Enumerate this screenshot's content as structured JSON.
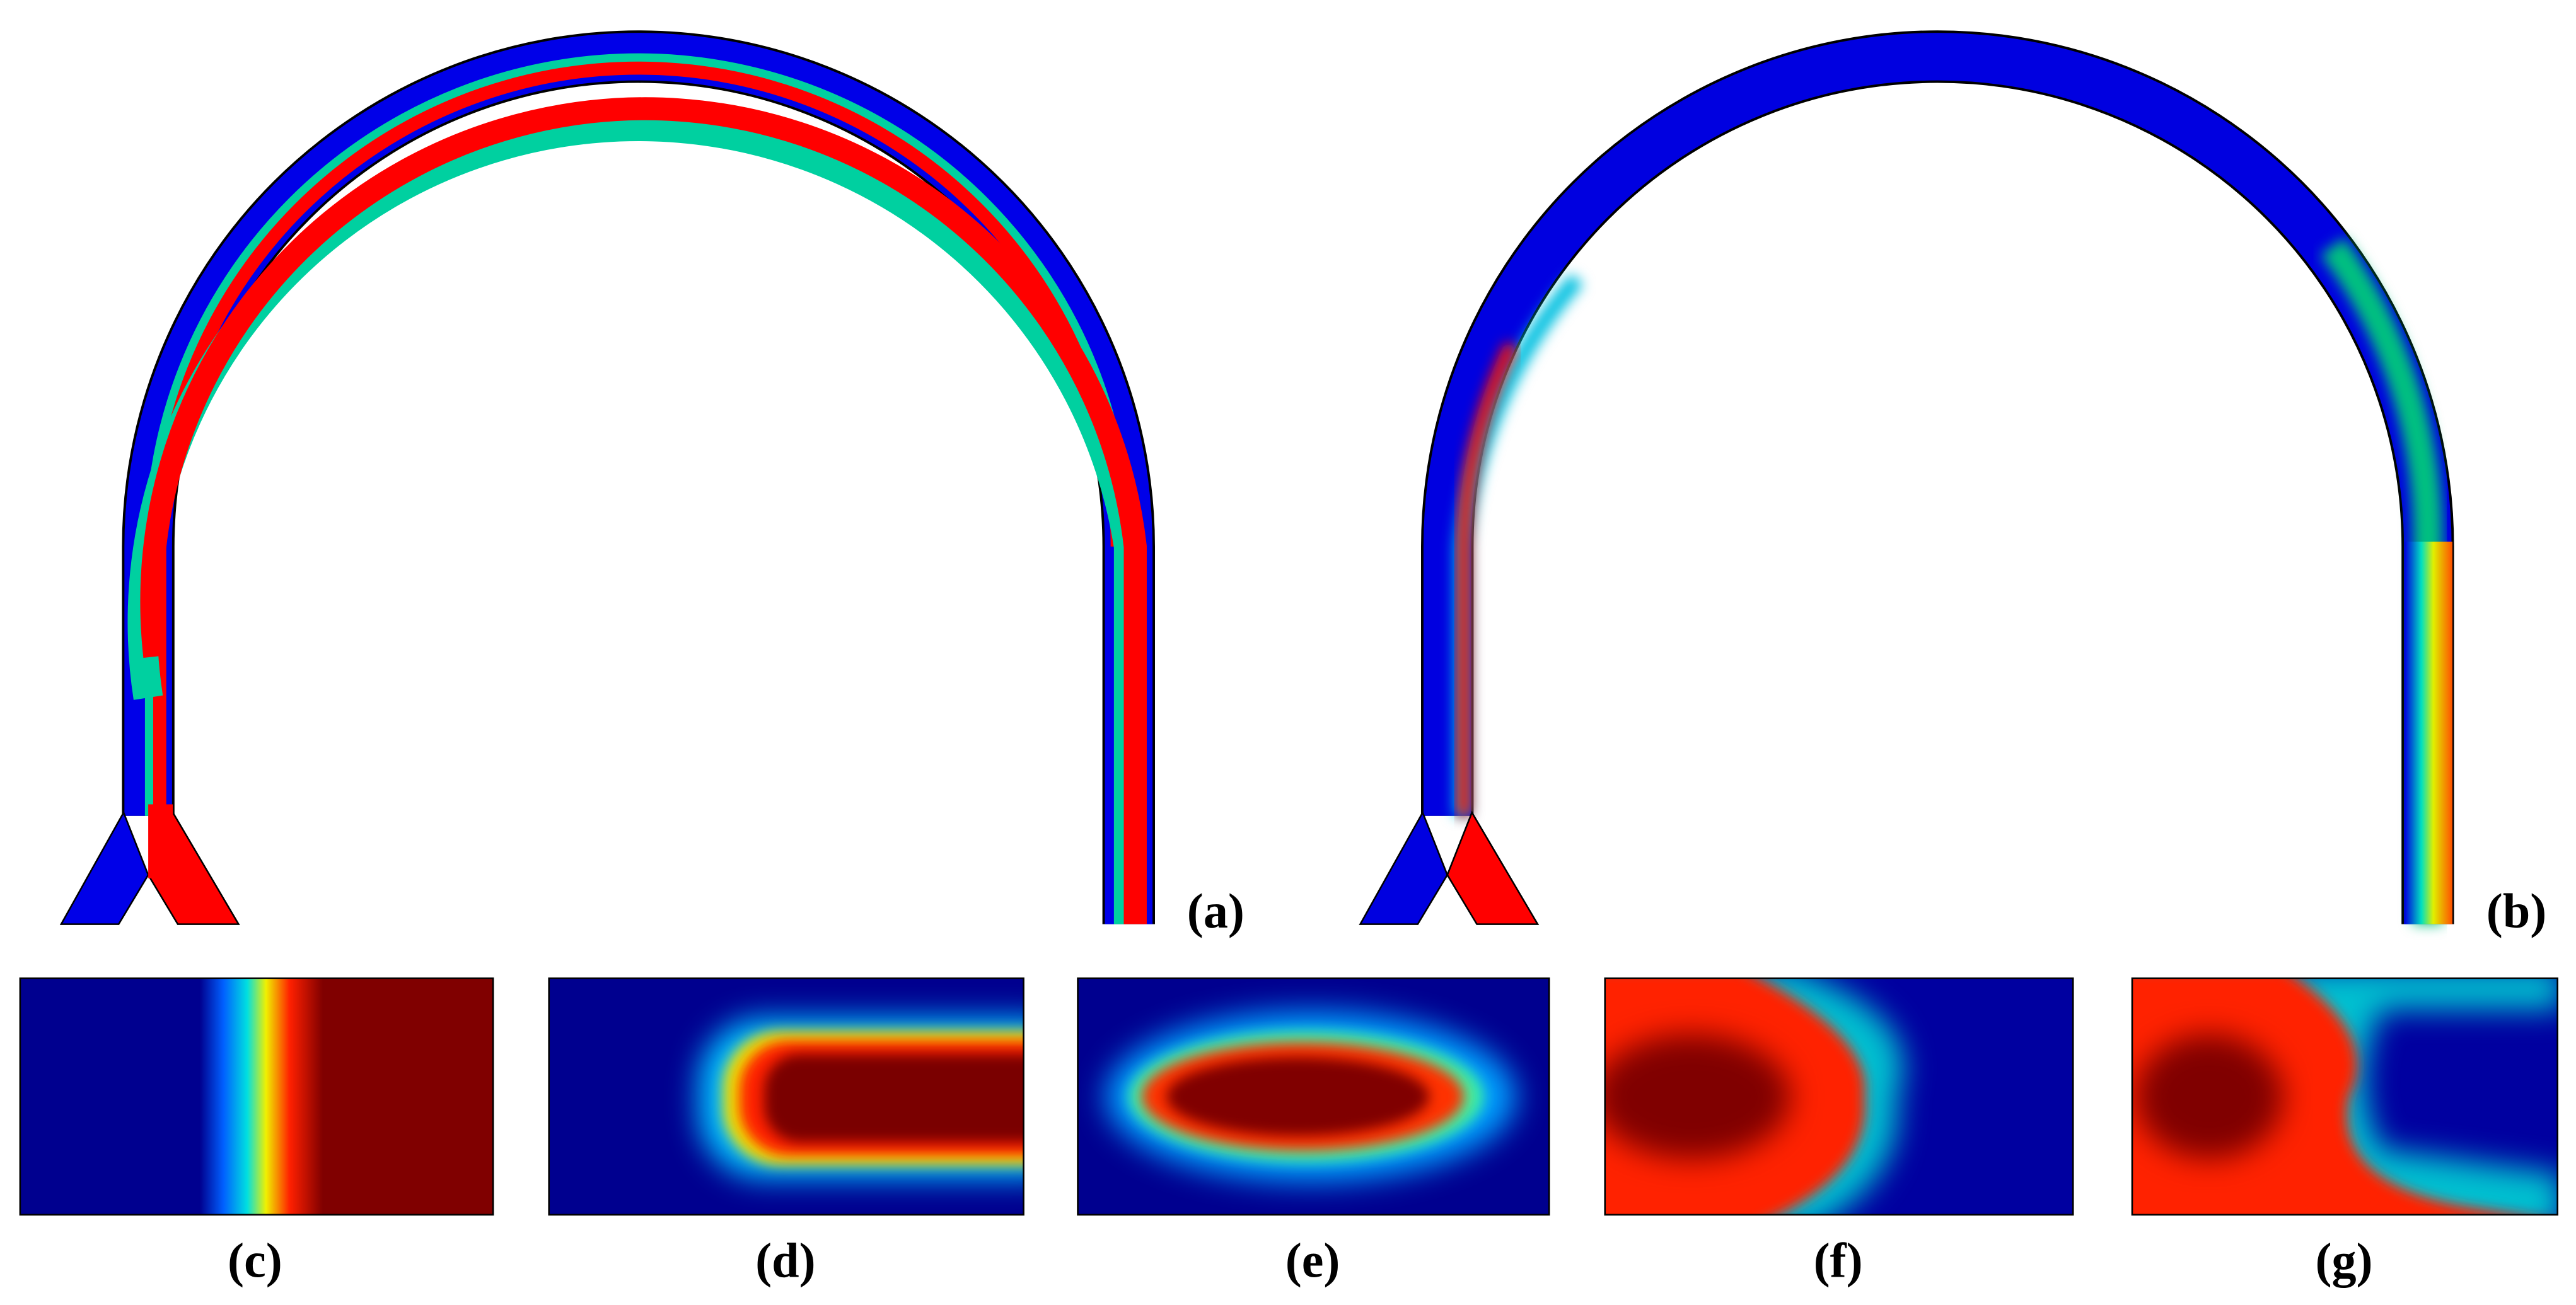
{
  "labels": [
    "(a)",
    "(b)",
    "(c)",
    "(d)",
    "(e)",
    "(f)",
    "(g)"
  ]
}
